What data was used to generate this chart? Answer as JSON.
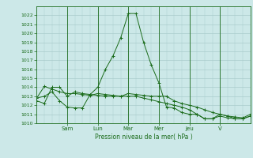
{
  "background_color": "#cce8e8",
  "grid_color": "#aacccc",
  "line_color": "#1a6b1a",
  "ylabel": "Pression niveau de la mer( hPa )",
  "ylim": [
    1010,
    1023
  ],
  "ytick_min": 1010,
  "ytick_max": 1022,
  "day_labels": [
    "Sam",
    "Lun",
    "Mar",
    "Mer",
    "Jeu",
    "V"
  ],
  "series": [
    {
      "x": [
        0,
        0.5,
        1.0,
        1.5,
        2.0,
        2.5,
        3.0,
        3.5,
        4.0,
        4.5,
        5.0,
        5.5,
        6.0,
        6.5,
        7.0,
        7.5,
        8.0,
        8.5,
        9.0,
        9.5,
        10.0,
        10.5,
        11.0,
        11.5,
        12.0,
        12.5,
        13.0,
        13.5,
        14.0
      ],
      "y": [
        1012.5,
        1012.2,
        1014.0,
        1014.0,
        1013.0,
        1013.5,
        1013.3,
        1013.2,
        1014.0,
        1016.0,
        1017.5,
        1019.5,
        1022.2,
        1022.2,
        1019.0,
        1016.5,
        1014.5,
        1011.8,
        1011.7,
        1011.2,
        1011.0,
        1011.0,
        1010.5,
        1010.5,
        1011.0,
        1010.8,
        1010.7,
        1010.6,
        1011.0
      ]
    },
    {
      "x": [
        0,
        0.5,
        1.0,
        1.5,
        2.0,
        2.5,
        3.0,
        3.5,
        4.0,
        4.5,
        5.0,
        5.5,
        6.0,
        6.5,
        7.0,
        7.5,
        8.0,
        8.5,
        9.0,
        9.5,
        10.0,
        10.5,
        11.0,
        11.5,
        12.0,
        12.5,
        13.0,
        13.5,
        14.0
      ],
      "y": [
        1012.8,
        1014.1,
        1013.8,
        1013.5,
        1013.3,
        1013.3,
        1013.2,
        1013.1,
        1013.3,
        1013.2,
        1013.1,
        1013.0,
        1013.0,
        1013.0,
        1012.8,
        1012.6,
        1012.4,
        1012.2,
        1012.0,
        1011.8,
        1011.5,
        1011.0,
        1010.5,
        1010.5,
        1010.8,
        1010.6,
        1010.5,
        1010.5,
        1010.8
      ]
    },
    {
      "x": [
        0,
        0.5,
        1.0,
        1.5,
        2.0,
        2.5,
        3.0,
        3.5,
        4.0,
        4.5,
        5.0,
        5.5,
        6.0,
        6.5,
        7.0,
        7.5,
        8.0,
        8.5,
        9.0,
        9.5,
        10.0,
        10.5,
        11.0,
        11.5,
        12.0,
        12.5,
        13.0,
        13.5,
        14.0
      ],
      "y": [
        1012.8,
        1013.0,
        1013.5,
        1012.5,
        1011.8,
        1011.7,
        1011.7,
        1013.2,
        1013.1,
        1013.0,
        1013.0,
        1013.0,
        1013.3,
        1013.2,
        1013.1,
        1013.0,
        1013.0,
        1013.0,
        1012.5,
        1012.2,
        1012.0,
        1011.8,
        1011.5,
        1011.2,
        1011.0,
        1010.8,
        1010.5,
        1010.5,
        1010.8
      ]
    }
  ],
  "xlim": [
    0,
    14
  ],
  "day_x_positions": [
    2,
    4,
    6,
    8,
    10,
    12
  ],
  "vert_line_positions": [
    2,
    4,
    6,
    8,
    10,
    12
  ]
}
